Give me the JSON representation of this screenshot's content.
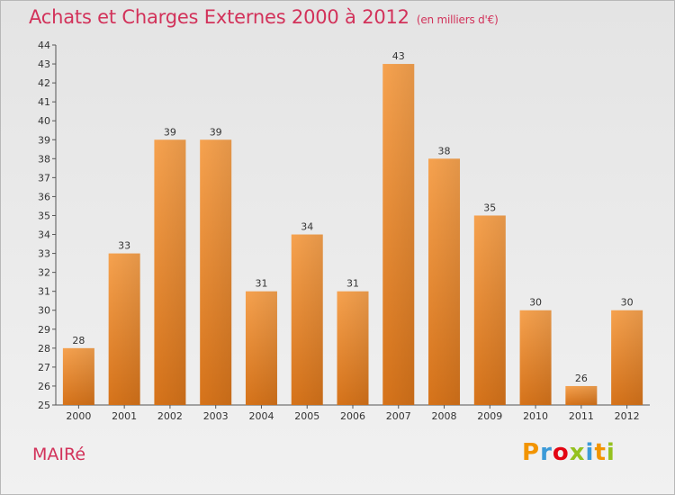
{
  "header": {
    "title": "Achats et Charges Externes 2000 à 2012",
    "subtitle": "(en milliers d'€)"
  },
  "footer": {
    "commune": "MAIRé",
    "logo": {
      "letters": [
        "P",
        "r",
        "o",
        "x",
        "i",
        "t",
        "i"
      ],
      "colors": [
        "#f29400",
        "#3b9ad8",
        "#e30613",
        "#95c11f",
        "#3b9ad8",
        "#f29400",
        "#95c11f"
      ]
    }
  },
  "chart_data": {
    "type": "bar",
    "title": "Achats et Charges Externes 2000 à 2012",
    "subtitle": "(en milliers d'€)",
    "categories": [
      "2000",
      "2001",
      "2002",
      "2003",
      "2004",
      "2005",
      "2006",
      "2007",
      "2008",
      "2009",
      "2010",
      "2011",
      "2012"
    ],
    "values": [
      28,
      33,
      39,
      39,
      31,
      34,
      31,
      43,
      38,
      35,
      30,
      26,
      30
    ],
    "xlabel": "",
    "ylabel": "",
    "ylim": [
      25,
      44
    ],
    "yticks": [
      25,
      26,
      27,
      28,
      29,
      30,
      31,
      32,
      33,
      34,
      35,
      36,
      37,
      38,
      39,
      40,
      41,
      42,
      43,
      44
    ],
    "grid": false,
    "colors": {
      "bar_light": "#f6a04e",
      "bar_dark": "#d9761c",
      "text": "#d2325a"
    }
  }
}
